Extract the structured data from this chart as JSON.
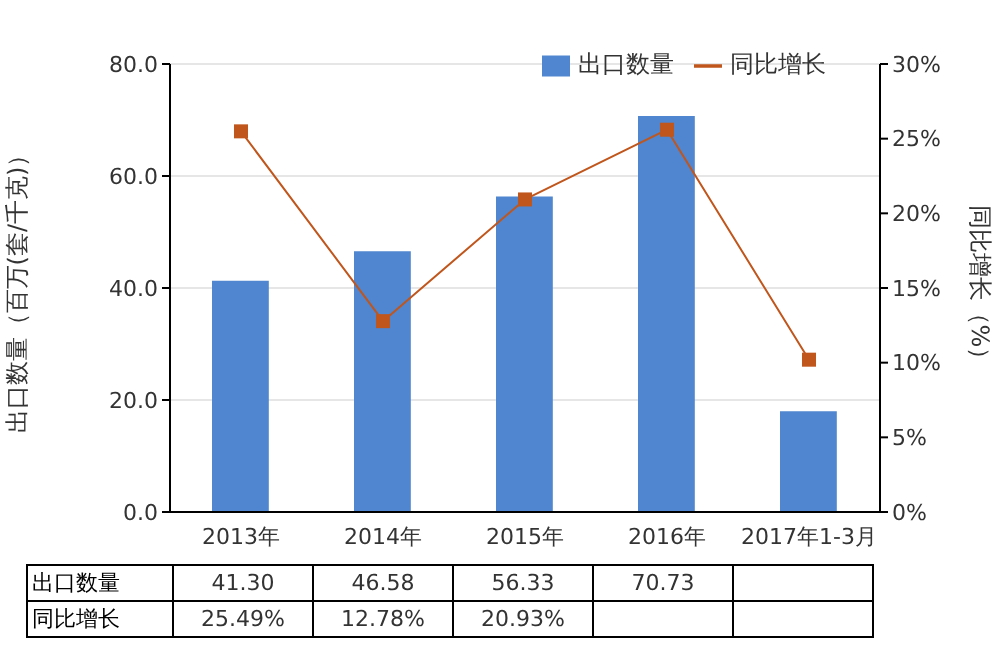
{
  "chart_data": {
    "type": "bar",
    "categories": [
      "2013年",
      "2014年",
      "2015年",
      "2016年",
      "2017年1-3月"
    ],
    "ylabel": "出口数量（百万(套/千克)）",
    "y2label": "同比增长（%）",
    "ylim": [
      0,
      80
    ],
    "yticks": [
      {
        "value": 0,
        "label": "0.0"
      },
      {
        "value": 20,
        "label": "20.0"
      },
      {
        "value": 40,
        "label": "40.0"
      },
      {
        "value": 60,
        "label": "60.0"
      },
      {
        "value": 80,
        "label": "80.0"
      }
    ],
    "y2lim": [
      0,
      30
    ],
    "y2ticks": [
      {
        "value": 0,
        "label": "0%"
      },
      {
        "value": 5,
        "label": "5%"
      },
      {
        "value": 10,
        "label": "10%"
      },
      {
        "value": 15,
        "label": "15%"
      },
      {
        "value": 20,
        "label": "20%"
      },
      {
        "value": 25,
        "label": "25%"
      },
      {
        "value": 30,
        "label": "30%"
      }
    ],
    "series": [
      {
        "name": "出口数量",
        "color": "#4f86cf",
        "values": [
          41.3,
          46.58,
          56.33,
          70.73,
          18.0
        ],
        "value_labels": [
          "41.30",
          "46.58",
          "56.33",
          "70.73",
          null
        ]
      },
      {
        "name": "同比增长",
        "type": "line",
        "axis": "y2",
        "color": "#c0561c",
        "values": [
          25.49,
          12.78,
          20.93,
          25.6,
          10.2
        ],
        "value_labels": [
          "25.49%",
          "12.78%",
          "20.93%",
          null,
          null
        ]
      }
    ],
    "grid": "y",
    "legend": "top right",
    "marker": "square",
    "data_labels": true
  }
}
